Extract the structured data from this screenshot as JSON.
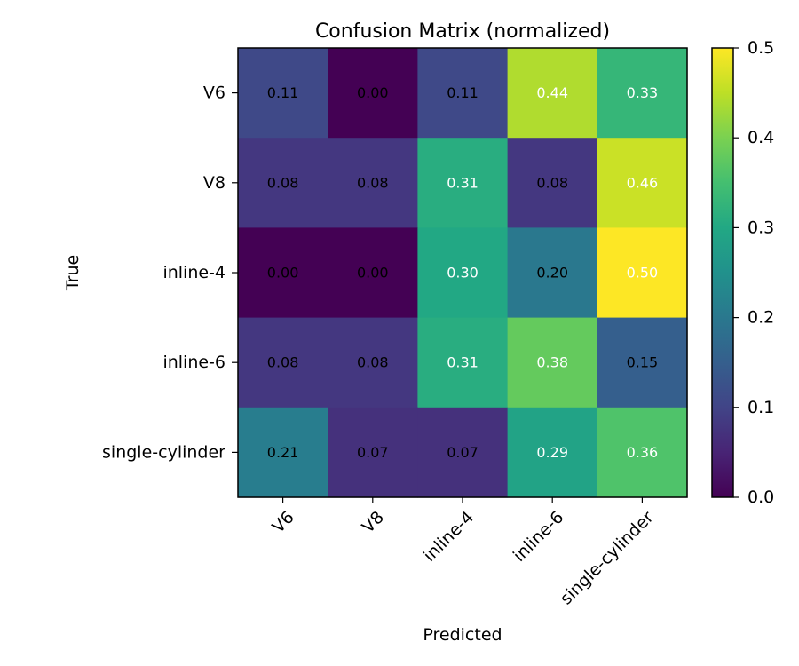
{
  "chart_data": {
    "type": "heatmap",
    "title": "Confusion Matrix (normalized)",
    "xlabel": "Predicted",
    "ylabel": "True",
    "x_categories": [
      "V6",
      "V8",
      "inline-4",
      "inline-6",
      "single-cylinder"
    ],
    "y_categories": [
      "V6",
      "V8",
      "inline-4",
      "inline-6",
      "single-cylinder"
    ],
    "values": [
      [
        0.11,
        0.0,
        0.11,
        0.44,
        0.33
      ],
      [
        0.08,
        0.08,
        0.31,
        0.08,
        0.46
      ],
      [
        0.0,
        0.0,
        0.3,
        0.2,
        0.5
      ],
      [
        0.08,
        0.08,
        0.31,
        0.38,
        0.15
      ],
      [
        0.21,
        0.07,
        0.07,
        0.29,
        0.36
      ]
    ],
    "value_labels": [
      [
        "0.11",
        "0.00",
        "0.11",
        "0.44",
        "0.33"
      ],
      [
        "0.08",
        "0.08",
        "0.31",
        "0.08",
        "0.46"
      ],
      [
        "0.00",
        "0.00",
        "0.30",
        "0.20",
        "0.50"
      ],
      [
        "0.08",
        "0.08",
        "0.31",
        "0.38",
        "0.15"
      ],
      [
        "0.21",
        "0.07",
        "0.07",
        "0.29",
        "0.36"
      ]
    ],
    "colormap": "viridis",
    "colorbar": {
      "range": [
        0.0,
        0.5
      ],
      "ticks": [
        0.0,
        0.1,
        0.2,
        0.3,
        0.4,
        0.5
      ],
      "tick_labels": [
        "0.0",
        "0.1",
        "0.2",
        "0.3",
        "0.4",
        "0.5"
      ]
    },
    "x_tick_rotation_deg": 45,
    "grid": false
  }
}
